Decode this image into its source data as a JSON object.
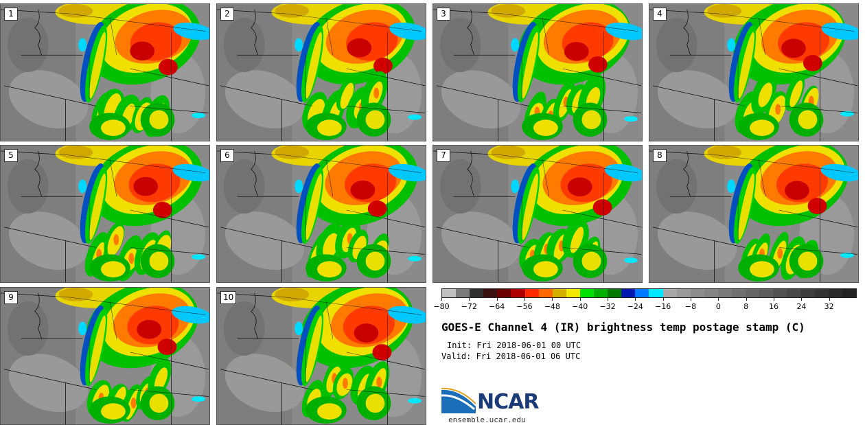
{
  "panels": [
    {
      "label": "1"
    },
    {
      "label": "2"
    },
    {
      "label": "3"
    },
    {
      "label": "4"
    },
    {
      "label": "5"
    },
    {
      "label": "6"
    },
    {
      "label": "7"
    },
    {
      "label": "8"
    },
    {
      "label": "9"
    },
    {
      "label": "10"
    }
  ],
  "colorbar": {
    "colors": [
      "#c0c0c0",
      "#7a7a7a",
      "#303030",
      "#3a1010",
      "#6a0000",
      "#b00000",
      "#ff2a00",
      "#ff6a00",
      "#d4b000",
      "#f0e800",
      "#00e000",
      "#00b000",
      "#007a00",
      "#0018b0",
      "#0078ff",
      "#00e8ff",
      "#a8a8a8",
      "#9a9a9a",
      "#8e8e8e",
      "#848484",
      "#7a7a7a",
      "#707070",
      "#666666",
      "#5c5c5c",
      "#525252",
      "#484848",
      "#3e3e3e",
      "#343434",
      "#2a2a2a",
      "#222222"
    ],
    "tick_labels": [
      "−80",
      "−72",
      "−64",
      "−56",
      "−48",
      "−40",
      "−32",
      "−24",
      "−16",
      "−8",
      "0",
      "8",
      "16",
      "24",
      "32"
    ]
  },
  "title": "GOES-E Channel 4 (IR) brightness temp postage stamp (C)",
  "init": "Init: Fri 2018-06-01 00 UTC",
  "valid": "Valid: Fri 2018-06-01 06 UTC",
  "logo": {
    "text": "NCAR",
    "accent": "#1a6fb8"
  },
  "site": "ensemble.ucar.edu"
}
